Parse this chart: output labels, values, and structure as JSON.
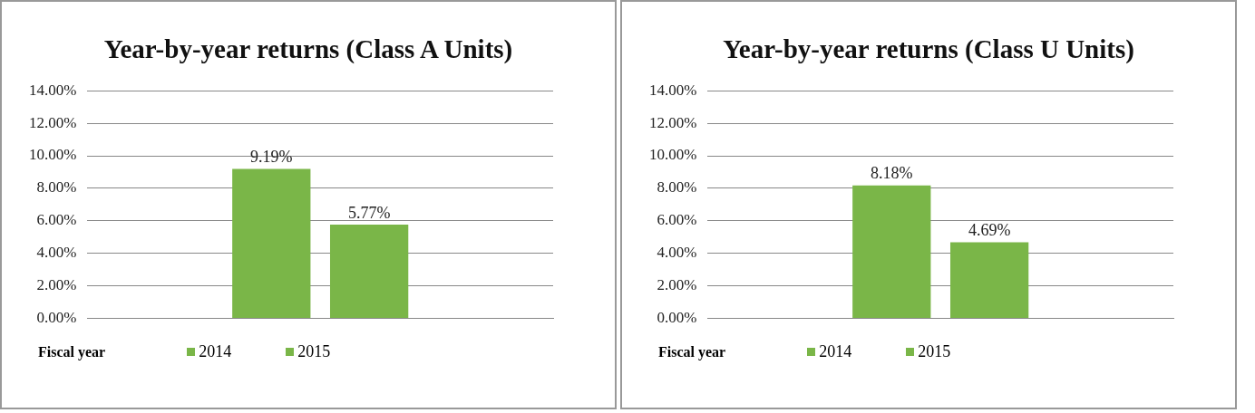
{
  "chart_data": [
    {
      "type": "bar",
      "title": "Year-by-year returns (Class A Units)",
      "legend_title": "Fiscal year",
      "categories": [
        null
      ],
      "series": [
        {
          "name": "2014",
          "color": "#7ab648",
          "values": [
            9.19
          ],
          "value_labels": [
            "9.19%"
          ]
        },
        {
          "name": "2015",
          "color": "#7ab648",
          "values": [
            5.77
          ],
          "value_labels": [
            "5.77%"
          ]
        }
      ],
      "ylim": [
        0,
        14
      ],
      "yticks": [
        {
          "value": 0,
          "label": "0.00%"
        },
        {
          "value": 2,
          "label": "2.00%"
        },
        {
          "value": 4,
          "label": "4.00%"
        },
        {
          "value": 6,
          "label": "6.00%"
        },
        {
          "value": 8,
          "label": "8.00%"
        },
        {
          "value": 10,
          "label": "10.00%"
        },
        {
          "value": 12,
          "label": "12.00%"
        },
        {
          "value": 14,
          "label": "14.00%"
        }
      ],
      "grid": "y",
      "legend": "bottom"
    },
    {
      "type": "bar",
      "title": "Year-by-year returns (Class U Units)",
      "legend_title": "Fiscal year",
      "categories": [
        null
      ],
      "series": [
        {
          "name": "2014",
          "color": "#7ab648",
          "values": [
            8.18
          ],
          "value_labels": [
            "8.18%"
          ]
        },
        {
          "name": "2015",
          "color": "#7ab648",
          "values": [
            4.69
          ],
          "value_labels": [
            "4.69%"
          ]
        }
      ],
      "ylim": [
        0,
        14
      ],
      "yticks": [
        {
          "value": 0,
          "label": "0.00%"
        },
        {
          "value": 2,
          "label": "2.00%"
        },
        {
          "value": 4,
          "label": "4.00%"
        },
        {
          "value": 6,
          "label": "6.00%"
        },
        {
          "value": 8,
          "label": "8.00%"
        },
        {
          "value": 10,
          "label": "10.00%"
        },
        {
          "value": 12,
          "label": "12.00%"
        },
        {
          "value": 14,
          "label": "14.00%"
        }
      ],
      "grid": "y",
      "legend": "bottom"
    }
  ]
}
